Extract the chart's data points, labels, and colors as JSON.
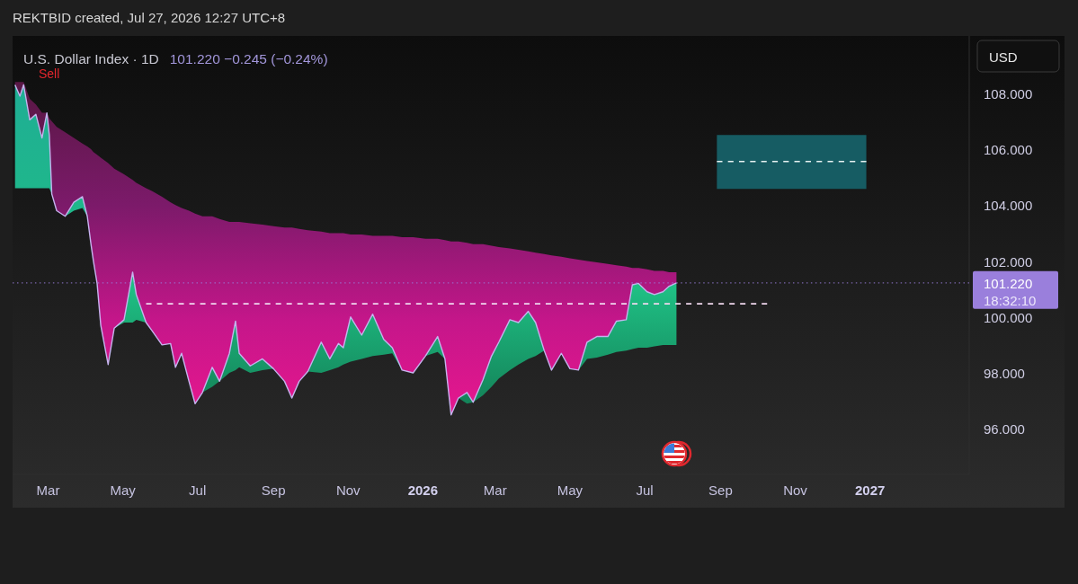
{
  "chart_data": {
    "type": "line",
    "title": "U.S. Dollar Index · 1D",
    "subtitle": "101.220 −0.245 (−0.24%)",
    "ylabel": "USD",
    "annotations": [
      "REKTBID created, Jul 27, 2026 12:27 UTC+8",
      "Sell"
    ],
    "xlim": [
      "2025-01-31",
      "2027-03-23"
    ],
    "xticks": [
      {
        "value": "2025-03-01",
        "label": "Mar"
      },
      {
        "value": "2025-05-01",
        "label": "May"
      },
      {
        "value": "2025-07-01",
        "label": "Jul"
      },
      {
        "value": "2025-09-01",
        "label": "Sep"
      },
      {
        "value": "2025-11-01",
        "label": "Nov"
      },
      {
        "value": "2026-01-01",
        "label": "2026"
      },
      {
        "value": "2026-03-01",
        "label": "Mar"
      },
      {
        "value": "2026-05-01",
        "label": "May"
      },
      {
        "value": "2026-07-01",
        "label": "Jul"
      },
      {
        "value": "2026-09-01",
        "label": "Sep"
      },
      {
        "value": "2026-11-01",
        "label": "Nov"
      },
      {
        "value": "2027-01-01",
        "label": "2027"
      }
    ],
    "ylim": [
      94.37,
      110.05
    ],
    "yticks": [
      {
        "value": 96,
        "label": "96.000"
      },
      {
        "value": 98,
        "label": "98.000"
      },
      {
        "value": 100,
        "label": "100.000"
      },
      {
        "value": 102,
        "label": "102.000"
      },
      {
        "value": 104,
        "label": "104.000"
      },
      {
        "value": 106,
        "label": "106.000"
      },
      {
        "value": 108,
        "label": "108.000"
      }
    ],
    "ref_lines": [
      {
        "axis": "y",
        "value": 101.22,
        "label": "101.220\n18:32:10",
        "color": "#9a7fdc",
        "line_style": "dotted"
      }
    ],
    "series": [
      {
        "color": "#c5b3ee",
        "x": [
          "2025-02-02",
          "2025-02-06",
          "2025-02-09",
          "2025-02-14",
          "2025-02-19",
          "2025-02-24",
          "2025-02-28",
          "2025-03-02",
          "2025-03-04",
          "2025-03-08",
          "2025-03-15",
          "2025-03-22",
          "2025-03-29",
          "2025-04-02",
          "2025-04-05",
          "2025-04-07",
          "2025-04-10",
          "2025-04-13",
          "2025-04-19",
          "2025-04-24",
          "2025-05-02",
          "2025-05-09",
          "2025-05-12",
          "2025-05-20",
          "2025-05-25",
          "2025-06-02",
          "2025-06-09",
          "2025-06-13",
          "2025-06-18",
          "2025-06-24",
          "2025-06-29",
          "2025-07-05",
          "2025-07-13",
          "2025-07-19",
          "2025-07-27",
          "2025-08-01",
          "2025-08-04",
          "2025-08-13",
          "2025-08-23",
          "2025-09-01",
          "2025-09-10",
          "2025-09-16",
          "2025-09-22",
          "2025-09-29",
          "2025-10-10",
          "2025-10-17",
          "2025-10-24",
          "2025-10-28",
          "2025-11-03",
          "2025-11-12",
          "2025-11-21",
          "2025-11-30",
          "2025-12-07",
          "2025-12-15",
          "2025-12-24",
          "2026-01-03",
          "2026-01-13",
          "2026-01-19",
          "2026-01-24",
          "2026-01-30",
          "2026-02-06",
          "2026-02-11",
          "2026-02-19",
          "2026-02-26",
          "2026-03-04",
          "2026-03-13",
          "2026-03-20",
          "2026-03-28",
          "2026-04-03",
          "2026-04-10",
          "2026-04-16",
          "2026-04-24",
          "2026-05-01",
          "2026-05-08",
          "2026-05-15",
          "2026-05-23",
          "2026-06-01",
          "2026-06-08",
          "2026-06-16",
          "2026-06-21",
          "2026-06-26",
          "2026-07-03",
          "2026-07-09",
          "2026-07-16",
          "2026-07-21",
          "2026-07-27"
        ],
        "values": [
          108.3,
          107.9,
          108.3,
          107.05,
          107.25,
          106.4,
          107.3,
          106.5,
          104.4,
          103.8,
          103.6,
          104.1,
          104.3,
          103.6,
          102.6,
          102.0,
          101.2,
          99.7,
          98.3,
          99.6,
          99.9,
          101.6,
          100.8,
          99.8,
          99.5,
          99.0,
          99.05,
          98.2,
          98.7,
          97.7,
          96.9,
          97.3,
          98.2,
          97.7,
          98.7,
          99.85,
          98.7,
          98.25,
          98.5,
          98.15,
          97.7,
          97.1,
          97.7,
          98.05,
          99.1,
          98.5,
          99.05,
          98.9,
          100.0,
          99.35,
          100.1,
          99.2,
          98.9,
          98.1,
          98.0,
          98.6,
          99.3,
          98.5,
          96.5,
          97.1,
          97.3,
          96.95,
          97.75,
          98.6,
          99.1,
          99.9,
          99.8,
          100.2,
          99.8,
          98.8,
          98.1,
          98.7,
          98.15,
          98.1,
          99.1,
          99.3,
          99.3,
          99.85,
          99.9,
          101.15,
          101.2,
          100.9,
          100.8,
          100.9,
          101.1,
          101.22
        ],
        "upper": [
          108.4,
          108.4,
          108.4,
          107.8,
          107.6,
          107.3,
          107.3,
          107.1,
          107.0,
          106.8,
          106.6,
          106.4,
          106.2,
          106.1,
          106.0,
          105.9,
          105.8,
          105.7,
          105.5,
          105.3,
          105.1,
          104.9,
          104.8,
          104.6,
          104.5,
          104.3,
          104.1,
          104.0,
          103.9,
          103.8,
          103.7,
          103.6,
          103.6,
          103.5,
          103.4,
          103.4,
          103.4,
          103.35,
          103.3,
          103.25,
          103.2,
          103.2,
          103.15,
          103.1,
          103.05,
          103.0,
          103.0,
          103.0,
          102.95,
          102.95,
          102.9,
          102.9,
          102.9,
          102.85,
          102.85,
          102.8,
          102.8,
          102.75,
          102.7,
          102.7,
          102.65,
          102.6,
          102.6,
          102.55,
          102.5,
          102.45,
          102.4,
          102.35,
          102.3,
          102.25,
          102.2,
          102.15,
          102.1,
          102.05,
          102.0,
          101.95,
          101.9,
          101.85,
          101.8,
          101.75,
          101.75,
          101.7,
          101.65,
          101.65,
          101.6,
          101.6
        ],
        "lower": [
          104.6,
          104.6,
          104.6,
          104.6,
          104.6,
          104.6,
          104.6,
          104.6,
          104.4,
          103.8,
          103.6,
          103.8,
          103.9,
          103.6,
          102.6,
          102.0,
          101.2,
          99.7,
          98.3,
          99.6,
          99.8,
          99.8,
          99.9,
          99.8,
          99.5,
          99.0,
          99.05,
          98.2,
          98.7,
          97.7,
          96.9,
          97.3,
          97.5,
          97.7,
          98.0,
          98.1,
          98.2,
          98.0,
          98.1,
          98.15,
          97.7,
          97.1,
          97.7,
          98.05,
          98.0,
          98.1,
          98.2,
          98.3,
          98.4,
          98.5,
          98.6,
          98.65,
          98.7,
          98.1,
          98.0,
          98.6,
          98.75,
          98.5,
          96.5,
          97.1,
          96.9,
          96.95,
          97.2,
          97.5,
          97.8,
          98.1,
          98.3,
          98.5,
          98.6,
          98.8,
          98.1,
          98.7,
          98.15,
          98.1,
          98.5,
          98.55,
          98.65,
          98.75,
          98.8,
          98.85,
          98.9,
          98.9,
          98.95,
          99.0,
          99.0,
          99.0
        ]
      },
      {
        "color": "#f0d8ee",
        "line_style": "dashed",
        "x": [
          "2025-05-20",
          "2026-10-09"
        ],
        "values": [
          100.47,
          100.47
        ]
      },
      {
        "color": "#e6f2f2",
        "line_style": "dashed",
        "x": [
          "2026-08-29",
          "2026-12-29"
        ],
        "values": [
          105.56,
          105.56
        ],
        "lower": [
          104.58,
          104.58
        ],
        "upper": [
          106.51,
          106.51
        ]
      }
    ]
  }
}
